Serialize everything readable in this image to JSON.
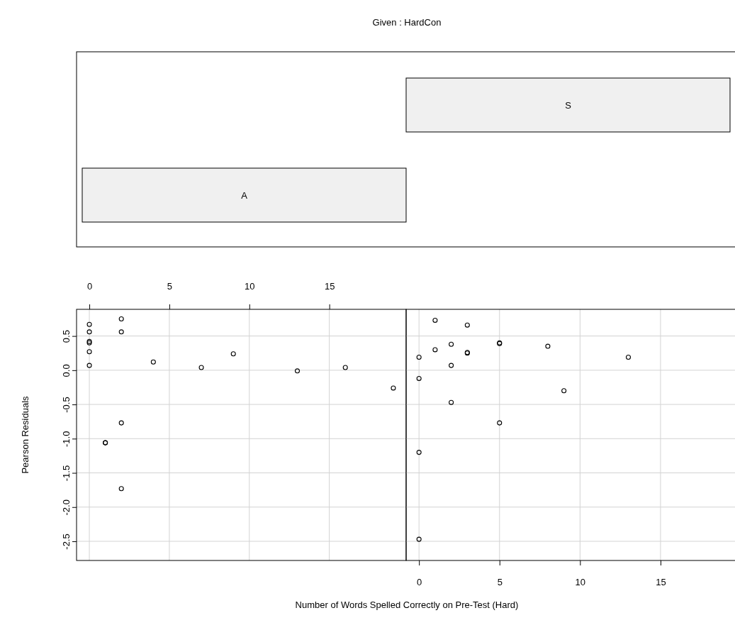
{
  "chart_data": [
    {
      "type": "other",
      "title": "Given : HardCon",
      "categories": [
        "A",
        "S"
      ]
    },
    {
      "type": "scatter",
      "ylabel": "Pearson Residuals",
      "marker": "circle",
      "grid": true,
      "xlim": [
        -0.8,
        19.8
      ],
      "xticks": [
        0,
        5,
        10,
        15
      ],
      "ylim": [
        -2.78,
        0.89
      ],
      "yticks": [
        {
          "value": 0.5,
          "label": "0.5"
        },
        {
          "value": 0,
          "label": "0.0"
        },
        {
          "value": -0.5,
          "label": "-0.5"
        },
        {
          "value": -1,
          "label": "-1.0"
        },
        {
          "value": -1.5,
          "label": "-1.5"
        },
        {
          "value": -2,
          "label": "-2.0"
        },
        {
          "value": -2.5,
          "label": "-2.5"
        }
      ],
      "series": [
        {
          "color": "#000000",
          "x": [
            0,
            0,
            0,
            0,
            0,
            0,
            2,
            2,
            4,
            7,
            9,
            13,
            16,
            19,
            2,
            1,
            1,
            2
          ],
          "values": [
            0.67,
            0.56,
            0.42,
            0.4,
            0.27,
            0.07,
            0.75,
            0.56,
            0.12,
            0.04,
            0.24,
            -0.01,
            0.04,
            -0.26,
            -0.77,
            -1.06,
            -1.06,
            -1.73
          ]
        }
      ]
    },
    {
      "type": "scatter",
      "xlabel": "Number of Words Spelled Correctly on Pre-Test (Hard)",
      "marker": "circle",
      "grid": true,
      "tick_labels": "x",
      "xlim": [
        -0.8,
        19.8
      ],
      "xticks": [
        0,
        5,
        10,
        15
      ],
      "ylim": [
        -2.78,
        0.89
      ],
      "yticks": [
        0.5,
        0,
        -0.5,
        -1,
        -1.5,
        -2,
        -2.5
      ],
      "series": [
        {
          "color": "#000000",
          "x": [
            1,
            3,
            1,
            2,
            3,
            3,
            5,
            5,
            0,
            2,
            0,
            8,
            13,
            9,
            2,
            5,
            0,
            0
          ],
          "values": [
            0.73,
            0.66,
            0.3,
            0.38,
            0.26,
            0.25,
            0.4,
            0.39,
            0.19,
            0.07,
            -0.12,
            0.35,
            0.19,
            -0.3,
            -0.47,
            -0.77,
            -1.2,
            -2.47
          ]
        }
      ]
    }
  ]
}
